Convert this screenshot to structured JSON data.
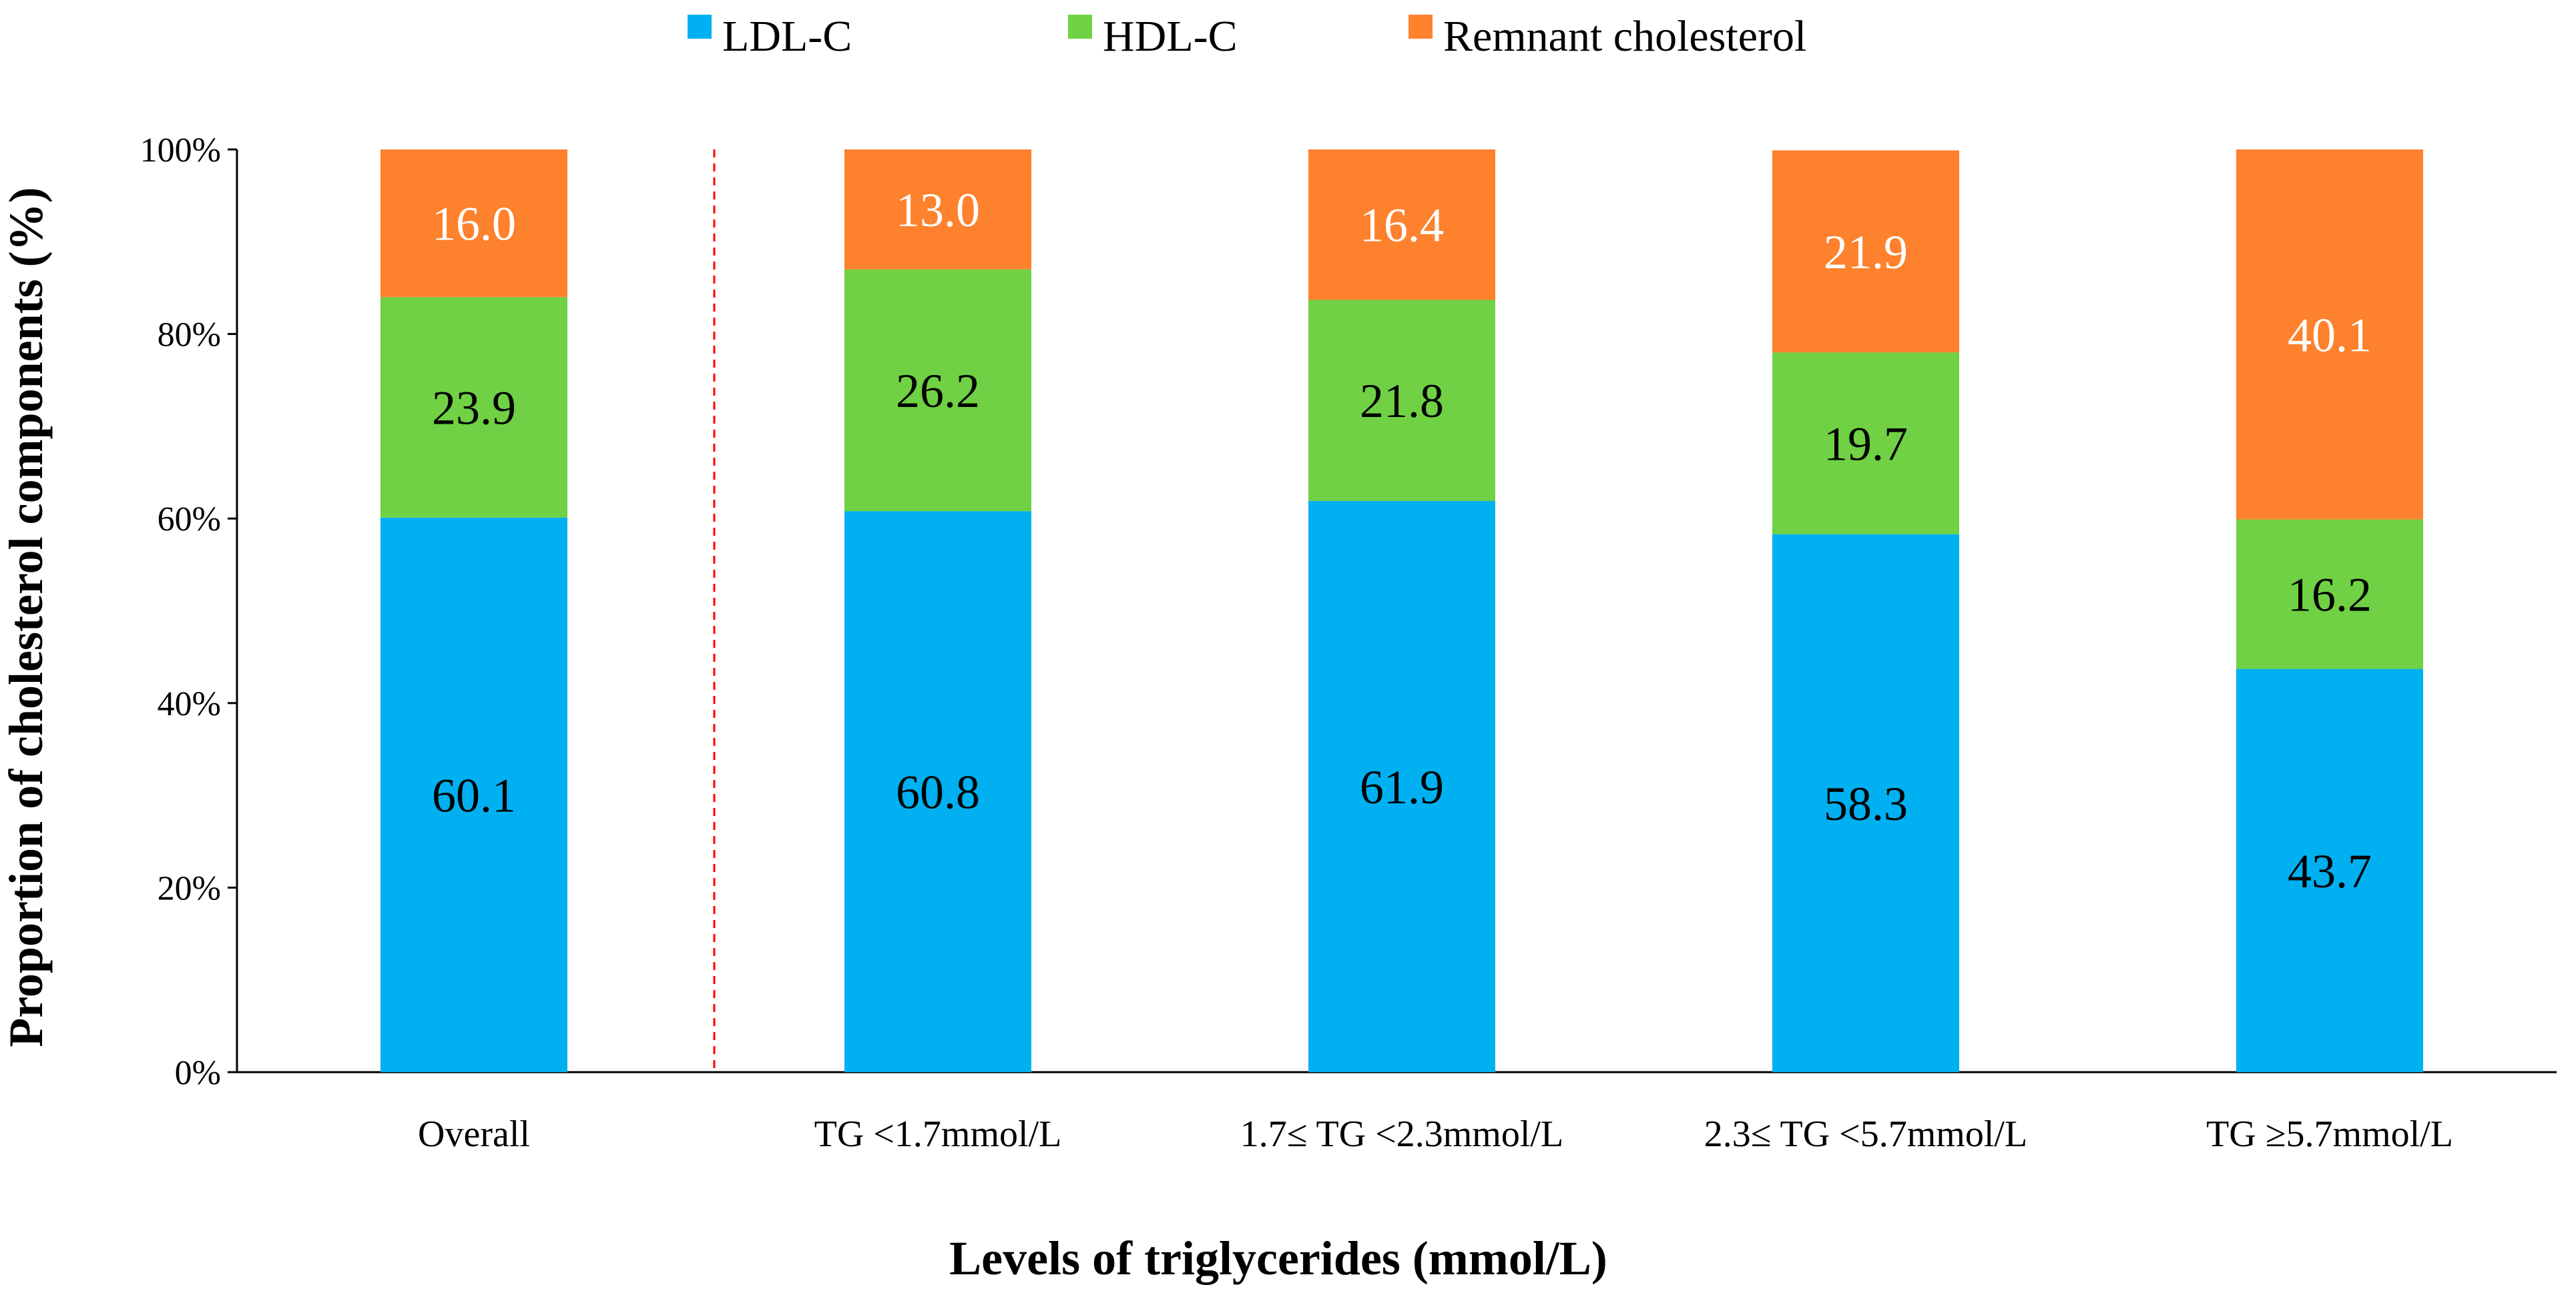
{
  "chart_data": {
    "type": "bar",
    "stacked": true,
    "percent_stacked": true,
    "title": "",
    "xlabel": "Levels of triglycerides (mmol/L)",
    "ylabel": "Proportion of cholesterol components (%)",
    "ylim": [
      0,
      100
    ],
    "yticks": [
      "0%",
      "20%",
      "40%",
      "60%",
      "80%",
      "100%"
    ],
    "categories": [
      "Overall",
      "TG <1.7mmol/L",
      "1.7≤ TG <2.3mmol/L",
      "2.3≤ TG <5.7mmol/L",
      "TG ≥5.7mmol/L"
    ],
    "series": [
      {
        "name": "LDL-C",
        "color": "#00b0f0",
        "label_color": "#000000",
        "values": [
          60.1,
          60.8,
          61.9,
          58.3,
          43.7
        ],
        "labels": [
          "60.1",
          "60.8",
          "61.9",
          "58.3",
          "43.7"
        ]
      },
      {
        "name": "HDL-C",
        "color": "#6fd143",
        "label_color": "#000000",
        "values": [
          23.9,
          26.2,
          21.8,
          19.7,
          16.2
        ],
        "labels": [
          "23.9",
          "26.2",
          "21.8",
          "19.7",
          "16.2"
        ]
      },
      {
        "name": "Remnant cholesterol",
        "color": "#fe812d",
        "label_color": "#ffffff",
        "values": [
          16.0,
          13.0,
          16.4,
          21.9,
          40.1
        ],
        "labels": [
          "16.0",
          "13.0",
          "16.4",
          "21.9",
          "40.1"
        ]
      }
    ],
    "legend_position": "top",
    "separator": {
      "after_category": "Overall",
      "style": "dashed",
      "color": "#ff0000"
    }
  }
}
